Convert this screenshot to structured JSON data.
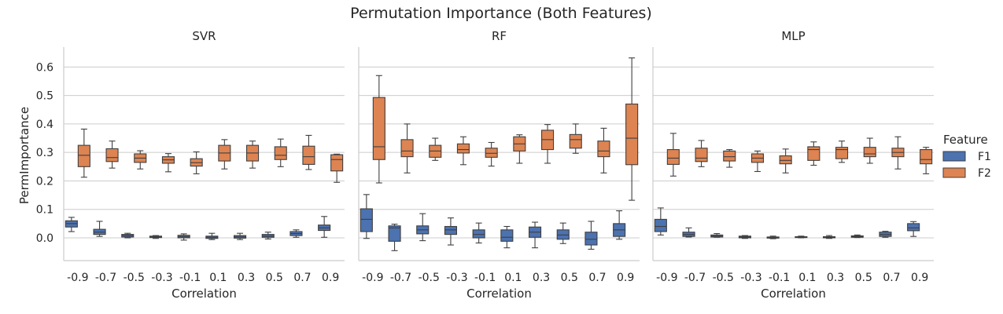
{
  "chart_data": {
    "type": "box",
    "title": "Permutation Importance (Both Features)",
    "xlabel": "Correlation",
    "ylabel": "PermImportance",
    "ylim": [
      -0.08,
      0.67
    ],
    "yticks": [
      "0.0",
      "0.1",
      "0.2",
      "0.3",
      "0.4",
      "0.5",
      "0.6"
    ],
    "categories": [
      "-0.9",
      "-0.7",
      "-0.5",
      "-0.3",
      "-0.1",
      "0.1",
      "0.3",
      "0.5",
      "0.7",
      "0.9"
    ],
    "grid": "horizontal",
    "legend": {
      "title": "Feature",
      "placement": "right",
      "entries": [
        {
          "name": "F1",
          "color": "#4c72b0"
        },
        {
          "name": "F2",
          "color": "#dd8452"
        }
      ]
    },
    "panels": [
      {
        "title": "SVR",
        "series": [
          {
            "name": "F1",
            "stats": [
              [
                0.022,
                0.038,
                0.05,
                0.06,
                0.072
              ],
              [
                0.005,
                0.012,
                0.02,
                0.03,
                0.058
              ],
              [
                0.0,
                0.003,
                0.008,
                0.012,
                0.016
              ],
              [
                -0.002,
                0.001,
                0.003,
                0.006,
                0.008
              ],
              [
                -0.008,
                0.0,
                0.004,
                0.009,
                0.014
              ],
              [
                -0.006,
                -0.002,
                0.002,
                0.006,
                0.016
              ],
              [
                -0.006,
                -0.001,
                0.003,
                0.008,
                0.016
              ],
              [
                -0.004,
                0.002,
                0.006,
                0.012,
                0.02
              ],
              [
                0.002,
                0.008,
                0.015,
                0.022,
                0.028
              ],
              [
                0.002,
                0.026,
                0.035,
                0.045,
                0.075
              ]
            ]
          },
          {
            "name": "F2",
            "stats": [
              [
                0.213,
                0.25,
                0.29,
                0.325,
                0.382
              ],
              [
                0.245,
                0.268,
                0.282,
                0.313,
                0.34
              ],
              [
                0.242,
                0.265,
                0.28,
                0.295,
                0.306
              ],
              [
                0.232,
                0.262,
                0.274,
                0.285,
                0.296
              ],
              [
                0.225,
                0.252,
                0.264,
                0.278,
                0.302
              ],
              [
                0.242,
                0.27,
                0.298,
                0.325,
                0.345
              ],
              [
                0.245,
                0.27,
                0.298,
                0.325,
                0.34
              ],
              [
                0.25,
                0.275,
                0.29,
                0.32,
                0.347
              ],
              [
                0.24,
                0.258,
                0.285,
                0.322,
                0.36
              ],
              [
                0.195,
                0.235,
                0.275,
                0.292,
                0.294
              ]
            ]
          }
        ]
      },
      {
        "title": "RF",
        "series": [
          {
            "name": "F1",
            "stats": [
              [
                -0.002,
                0.022,
                0.065,
                0.102,
                0.152
              ],
              [
                -0.045,
                -0.012,
                0.035,
                0.042,
                0.048
              ],
              [
                -0.01,
                0.014,
                0.028,
                0.042,
                0.085
              ],
              [
                -0.025,
                0.012,
                0.028,
                0.04,
                0.07
              ],
              [
                -0.018,
                0.0,
                0.012,
                0.028,
                0.052
              ],
              [
                -0.035,
                -0.012,
                0.002,
                0.028,
                0.04
              ],
              [
                -0.035,
                0.002,
                0.02,
                0.038,
                0.055
              ],
              [
                -0.02,
                -0.005,
                0.01,
                0.028,
                0.052
              ],
              [
                -0.04,
                -0.025,
                -0.005,
                0.02,
                0.058
              ],
              [
                -0.005,
                0.005,
                0.028,
                0.05,
                0.095
              ]
            ]
          },
          {
            "name": "F2",
            "stats": [
              [
                0.193,
                0.275,
                0.32,
                0.493,
                0.57
              ],
              [
                0.228,
                0.285,
                0.305,
                0.345,
                0.4
              ],
              [
                0.272,
                0.283,
                0.305,
                0.325,
                0.35
              ],
              [
                0.257,
                0.298,
                0.31,
                0.33,
                0.355
              ],
              [
                0.252,
                0.283,
                0.297,
                0.315,
                0.335
              ],
              [
                0.262,
                0.305,
                0.33,
                0.355,
                0.362
              ],
              [
                0.262,
                0.31,
                0.345,
                0.378,
                0.398
              ],
              [
                0.297,
                0.315,
                0.345,
                0.363,
                0.4
              ],
              [
                0.228,
                0.285,
                0.305,
                0.34,
                0.385
              ],
              [
                0.132,
                0.257,
                0.35,
                0.47,
                0.632
              ]
            ]
          }
        ]
      },
      {
        "title": "MLP",
        "series": [
          {
            "name": "F1",
            "stats": [
              [
                0.01,
                0.022,
                0.04,
                0.065,
                0.105
              ],
              [
                0.003,
                0.005,
                0.012,
                0.02,
                0.035
              ],
              [
                0.002,
                0.003,
                0.006,
                0.01,
                0.015
              ],
              [
                -0.002,
                0.0,
                0.003,
                0.006,
                0.008
              ],
              [
                -0.003,
                -0.001,
                0.001,
                0.003,
                0.006
              ],
              [
                0.0,
                0.001,
                0.003,
                0.004,
                0.006
              ],
              [
                -0.002,
                0.0,
                0.002,
                0.004,
                0.008
              ],
              [
                0.001,
                0.002,
                0.004,
                0.007,
                0.01
              ],
              [
                0.002,
                0.005,
                0.012,
                0.02,
                0.023
              ],
              [
                0.005,
                0.025,
                0.035,
                0.05,
                0.057
              ]
            ]
          },
          {
            "name": "F2",
            "stats": [
              [
                0.217,
                0.258,
                0.28,
                0.31,
                0.367
              ],
              [
                0.25,
                0.268,
                0.28,
                0.315,
                0.342
              ],
              [
                0.248,
                0.27,
                0.285,
                0.305,
                0.31
              ],
              [
                0.233,
                0.265,
                0.28,
                0.295,
                0.305
              ],
              [
                0.228,
                0.26,
                0.272,
                0.288,
                0.312
              ],
              [
                0.255,
                0.272,
                0.31,
                0.32,
                0.337
              ],
              [
                0.265,
                0.278,
                0.31,
                0.318,
                0.34
              ],
              [
                0.262,
                0.285,
                0.295,
                0.318,
                0.35
              ],
              [
                0.242,
                0.285,
                0.3,
                0.315,
                0.355
              ],
              [
                0.225,
                0.26,
                0.275,
                0.31,
                0.318
              ]
            ]
          }
        ]
      }
    ]
  }
}
